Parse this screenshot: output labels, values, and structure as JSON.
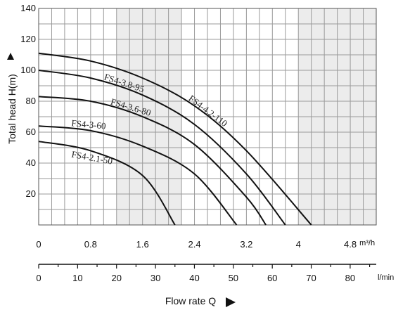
{
  "chart_data": {
    "type": "line",
    "title": "",
    "ylabel": "Total head H(m)",
    "xlabel": "Flow rate Q",
    "ylim": [
      0,
      140
    ],
    "y_ticks": [
      20,
      40,
      60,
      80,
      100,
      120,
      140
    ],
    "x_m3h": {
      "unit": "m³/h",
      "range": [
        0,
        5.2
      ],
      "ticks": [
        0,
        0.8,
        1.6,
        2.4,
        3.2,
        4,
        4.8
      ],
      "tick_labels": [
        "0",
        "0.8",
        "1.6",
        "2.4",
        "3.2",
        "4",
        "4.8"
      ]
    },
    "x_lmin": {
      "unit": "l/min",
      "range": [
        0,
        86.7
      ],
      "ticks": [
        0,
        10,
        20,
        30,
        40,
        50,
        60,
        70,
        80
      ],
      "tick_labels": [
        "0",
        "10",
        "20",
        "30",
        "40",
        "50",
        "60",
        "70",
        "80"
      ]
    },
    "shaded_bands_m3h": [
      [
        1.2,
        2.2
      ],
      [
        4.0,
        5.2
      ]
    ],
    "grid": true,
    "series": [
      {
        "name": "FS4-4.2-110",
        "color": "#111111",
        "points": [
          [
            0,
            111
          ],
          [
            0.8,
            106
          ],
          [
            1.6,
            95
          ],
          [
            2.4,
            77
          ],
          [
            3.2,
            48
          ],
          [
            4.2,
            0
          ]
        ]
      },
      {
        "name": "FS4-3.8-95",
        "color": "#111111",
        "points": [
          [
            0,
            100
          ],
          [
            0.8,
            95
          ],
          [
            1.6,
            84
          ],
          [
            2.4,
            65
          ],
          [
            3.2,
            33
          ],
          [
            3.8,
            0
          ]
        ]
      },
      {
        "name": "FS4-3.6-80",
        "color": "#111111",
        "points": [
          [
            0,
            83
          ],
          [
            0.8,
            80
          ],
          [
            1.6,
            70
          ],
          [
            2.4,
            52
          ],
          [
            3.2,
            18
          ],
          [
            3.5,
            0
          ]
        ]
      },
      {
        "name": "FS4-3-60",
        "color": "#111111",
        "points": [
          [
            0,
            64
          ],
          [
            0.8,
            61
          ],
          [
            1.6,
            51
          ],
          [
            2.4,
            33
          ],
          [
            3.05,
            0
          ]
        ]
      },
      {
        "name": "FS4-2.1-50",
        "color": "#111111",
        "points": [
          [
            0,
            54
          ],
          [
            0.8,
            48
          ],
          [
            1.6,
            32
          ],
          [
            2.1,
            0
          ]
        ]
      }
    ]
  }
}
